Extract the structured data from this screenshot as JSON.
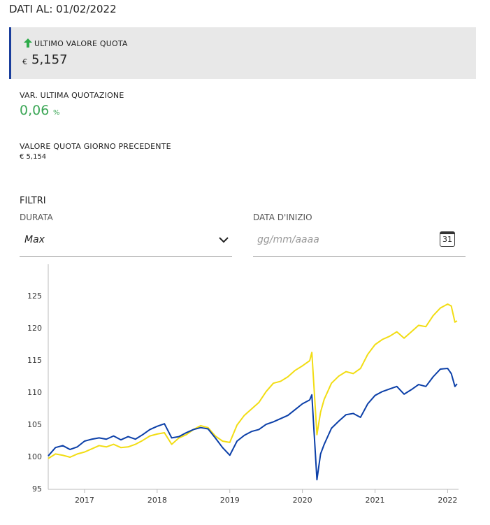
{
  "header": {
    "date_label": "DATI AL: 01/02/2022"
  },
  "last_value": {
    "label": "ULTIMO VALORE QUOTA",
    "currency": "€",
    "value": "5,157"
  },
  "variation": {
    "label": "VAR. ULTIMA QUOTAZIONE",
    "value": "0,06",
    "unit": "%"
  },
  "previous": {
    "label": "VALORE QUOTA GIORNO PRECEDENTE",
    "value": "€ 5,154"
  },
  "filters": {
    "title": "FILTRI",
    "duration_label": "DURATA",
    "duration_value": "Max",
    "start_label": "DATA D'INIZIO",
    "start_placeholder": "gg/mm/aaaa",
    "calendar_day": "31"
  },
  "chart_data": {
    "type": "line",
    "x": [
      2016.5,
      2016.6,
      2016.7,
      2016.8,
      2016.9,
      2017.0,
      2017.1,
      2017.2,
      2017.3,
      2017.4,
      2017.5,
      2017.6,
      2017.7,
      2017.8,
      2017.9,
      2018.0,
      2018.1,
      2018.2,
      2018.3,
      2018.4,
      2018.5,
      2018.6,
      2018.7,
      2018.8,
      2018.9,
      2019.0,
      2019.1,
      2019.2,
      2019.3,
      2019.4,
      2019.5,
      2019.6,
      2019.7,
      2019.8,
      2019.9,
      2020.0,
      2020.1,
      2020.13,
      2020.2,
      2020.25,
      2020.3,
      2020.4,
      2020.5,
      2020.6,
      2020.7,
      2020.8,
      2020.9,
      2021.0,
      2021.1,
      2021.2,
      2021.3,
      2021.4,
      2021.5,
      2021.6,
      2021.7,
      2021.8,
      2021.9,
      2022.0,
      2022.05,
      2022.1,
      2022.13
    ],
    "series": [
      {
        "color": "#f2dd14",
        "values": [
          99.8,
          100.5,
          100.3,
          100.0,
          100.5,
          100.8,
          101.3,
          101.8,
          101.6,
          102.0,
          101.5,
          101.6,
          102.0,
          102.6,
          103.3,
          103.6,
          103.8,
          102.0,
          103.0,
          103.5,
          104.3,
          104.9,
          104.6,
          103.3,
          102.5,
          102.3,
          105.0,
          106.5,
          107.5,
          108.5,
          110.2,
          111.5,
          111.8,
          112.5,
          113.5,
          114.2,
          115.0,
          116.3,
          103.5,
          107.0,
          109.0,
          111.5,
          112.6,
          113.3,
          113.0,
          113.8,
          116.0,
          117.5,
          118.3,
          118.8,
          119.5,
          118.5,
          119.5,
          120.5,
          120.3,
          122.0,
          123.2,
          123.8,
          123.5,
          121.0,
          121.2
        ]
      },
      {
        "color": "#0b3fa8",
        "values": [
          100.2,
          101.5,
          101.8,
          101.2,
          101.6,
          102.5,
          102.8,
          103.0,
          102.8,
          103.3,
          102.7,
          103.2,
          102.8,
          103.5,
          104.3,
          104.8,
          105.2,
          103.0,
          103.2,
          103.8,
          104.3,
          104.6,
          104.4,
          103.0,
          101.5,
          100.3,
          102.5,
          103.4,
          104.0,
          104.3,
          105.1,
          105.5,
          106.0,
          106.5,
          107.4,
          108.3,
          108.9,
          109.7,
          96.5,
          100.5,
          102.0,
          104.5,
          105.6,
          106.6,
          106.8,
          106.2,
          108.3,
          109.6,
          110.2,
          110.6,
          111.0,
          109.8,
          110.5,
          111.3,
          111.0,
          112.5,
          113.7,
          113.8,
          113.0,
          111.0,
          111.4
        ]
      }
    ],
    "xlim": [
      2016.5,
      2022.15
    ],
    "xticks": [
      2017,
      2018,
      2019,
      2020,
      2021,
      2022
    ],
    "ylim": [
      95,
      130
    ],
    "yticks": [
      95,
      100,
      105,
      110,
      115,
      120,
      125
    ]
  }
}
